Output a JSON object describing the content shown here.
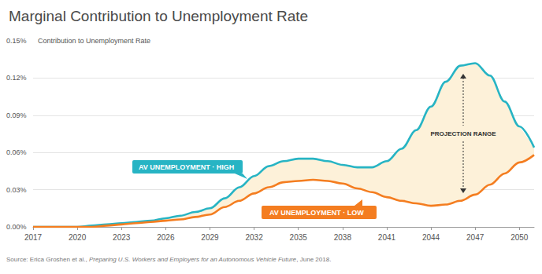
{
  "chart_data": {
    "type": "line",
    "title": "Marginal Contribution to Unemployment Rate",
    "y_label": "Contribution to Unemployment Rate",
    "x": [
      2017,
      2018,
      2019,
      2020,
      2021,
      2022,
      2023,
      2024,
      2025,
      2026,
      2027,
      2028,
      2029,
      2030,
      2031,
      2032,
      2033,
      2034,
      2035,
      2036,
      2037,
      2038,
      2039,
      2040,
      2041,
      2042,
      2043,
      2044,
      2045,
      2046,
      2047,
      2048,
      2049,
      2050,
      2051
    ],
    "xlim": [
      2017,
      2051
    ],
    "xticks": [
      2017,
      2020,
      2023,
      2026,
      2029,
      2032,
      2035,
      2038,
      2041,
      2044,
      2047,
      2050
    ],
    "ylim": [
      0,
      0.15
    ],
    "yticks": [
      {
        "value": 0,
        "label": "0.00%"
      },
      {
        "value": 0.03,
        "label": "0.03%"
      },
      {
        "value": 0.06,
        "label": "0.06%"
      },
      {
        "value": 0.09,
        "label": "0.09%"
      },
      {
        "value": 0.12,
        "label": "0.12%"
      },
      {
        "value": 0.15,
        "label": "0.15%"
      }
    ],
    "grid": true,
    "series": [
      {
        "name": "AV UNEMPLOYMENT · HIGH",
        "color": "#27b4c4",
        "values": [
          0,
          0,
          0,
          0,
          0.001,
          0.002,
          0.003,
          0.004,
          0.005,
          0.007,
          0.009,
          0.012,
          0.015,
          0.023,
          0.032,
          0.041,
          0.049,
          0.053,
          0.055,
          0.055,
          0.053,
          0.05,
          0.048,
          0.048,
          0.053,
          0.063,
          0.078,
          0.097,
          0.117,
          0.13,
          0.132,
          0.122,
          0.101,
          0.081,
          0.064
        ]
      },
      {
        "name": "AV UNEMPLOYMENT · LOW",
        "color": "#f47d20",
        "values": [
          0,
          0,
          0,
          0,
          0,
          0.001,
          0.002,
          0.003,
          0.004,
          0.005,
          0.006,
          0.008,
          0.01,
          0.016,
          0.021,
          0.027,
          0.032,
          0.036,
          0.037,
          0.038,
          0.037,
          0.035,
          0.031,
          0.028,
          0.024,
          0.021,
          0.019,
          0.017,
          0.018,
          0.021,
          0.026,
          0.034,
          0.043,
          0.052,
          0.058
        ]
      }
    ],
    "annotations": [
      "PROJECTION RANGE"
    ],
    "source": [
      "Source: Erica Groshen et al., ",
      "Preparing U.S. Workers and Employers for an Autonomous Vehicle Future",
      ", June 2018."
    ]
  }
}
